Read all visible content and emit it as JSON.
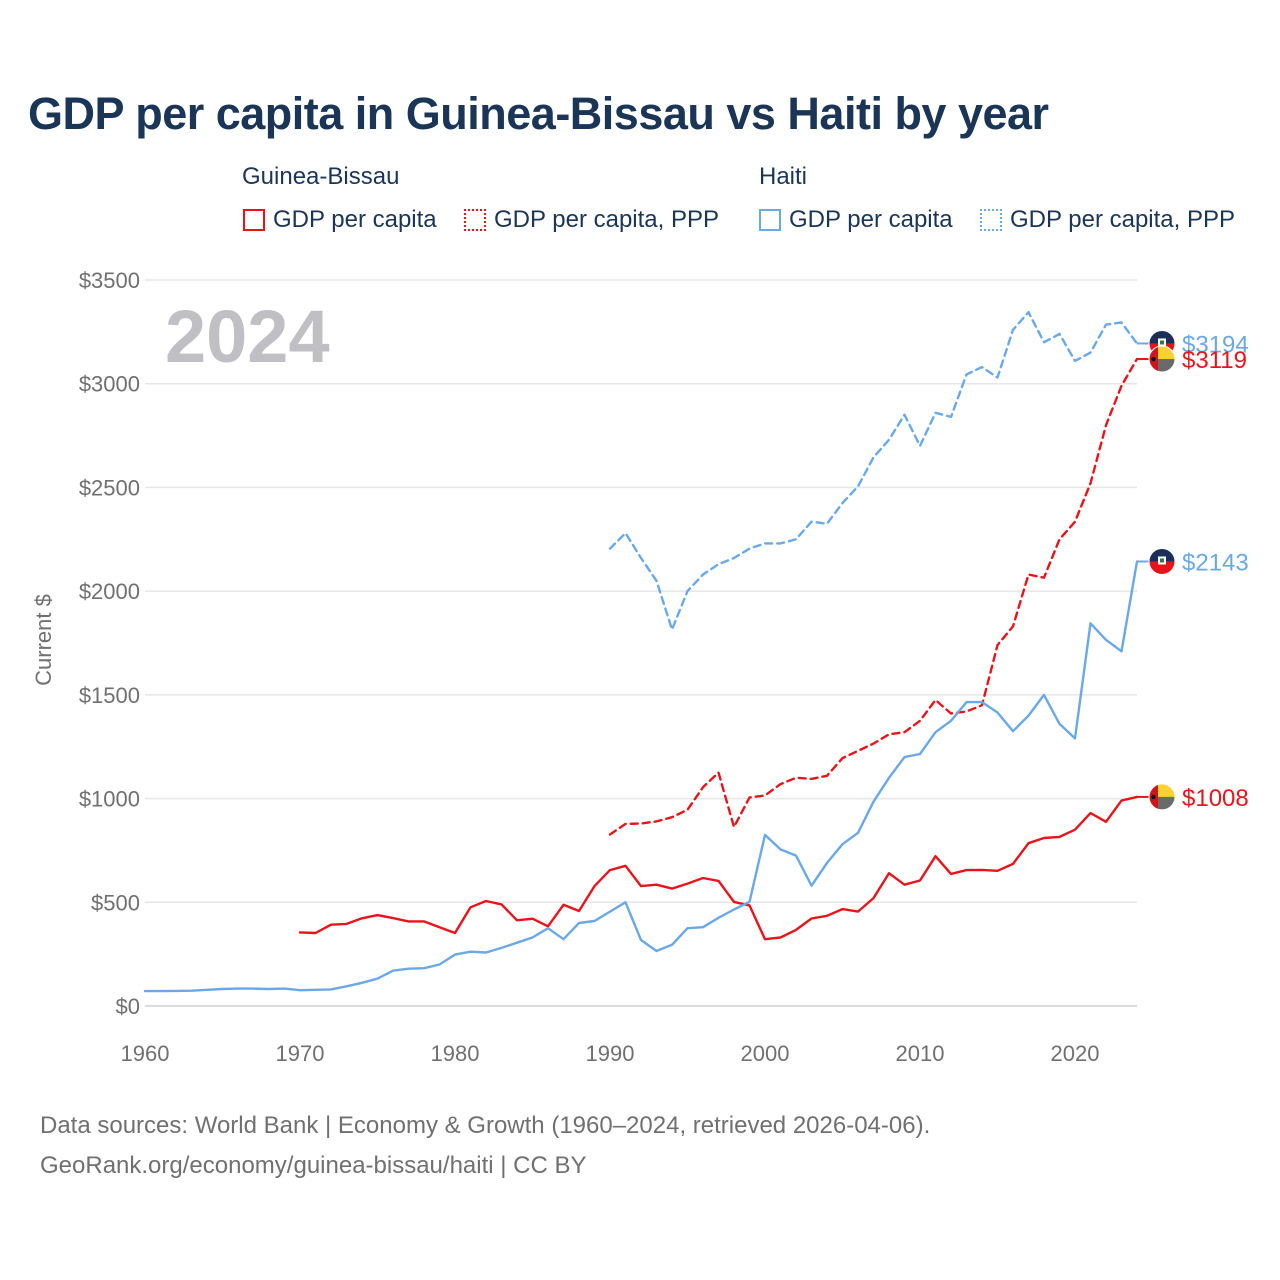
{
  "title": "GDP per capita in Guinea-Bissau vs Haiti by year",
  "legend": {
    "guinea_bissau": {
      "name": "Guinea-Bissau",
      "gdp_label": "GDP per capita",
      "ppp_label": "GDP per capita, PPP"
    },
    "haiti": {
      "name": "Haiti",
      "gdp_label": "GDP per capita",
      "ppp_label": "GDP per capita, PPP"
    }
  },
  "footer": {
    "line1": "Data sources: World Bank | Economy & Growth (1960–2024, retrieved 2026-04-06).",
    "line2": "GeoRank.org/economy/guinea-bissau/haiti | CC BY"
  },
  "colors": {
    "guinea_bissau": "#e8141c",
    "haiti": "#6aa8e6",
    "grid": "#e6e6e6",
    "year_watermark": "#c0c0c4"
  },
  "chart_data": {
    "type": "line",
    "title": "GDP per capita in Guinea-Bissau vs Haiti by year",
    "ylabel": "Current $",
    "xlabel": "",
    "xlim": [
      1960,
      2024
    ],
    "ylim": [
      0,
      3500
    ],
    "yticks": [
      0,
      500,
      1000,
      1500,
      2000,
      2500,
      3000,
      3500
    ],
    "ytick_labels": [
      "$0",
      "$500",
      "$1000",
      "$1500",
      "$2000",
      "$2500",
      "$3000",
      "$3500"
    ],
    "xticks": [
      1960,
      1970,
      1980,
      1990,
      2000,
      2010,
      2020
    ],
    "xtick_labels": [
      "1960",
      "1970",
      "1980",
      "1990",
      "2000",
      "2010",
      "2020"
    ],
    "year_watermark": "2024",
    "series": [
      {
        "id": "gb_gdp",
        "name": "Guinea-Bissau GDP per capita",
        "country": "guinea_bissau",
        "style": "solid",
        "start": 1970,
        "values": [
          355,
          352,
          392,
          396,
          423,
          438,
          424,
          408,
          408,
          380,
          352,
          476,
          506,
          490,
          413,
          421,
          384,
          488,
          458,
          578,
          655,
          676,
          578,
          585,
          566,
          590,
          617,
          603,
          502,
          485,
          322,
          330,
          367,
          422,
          435,
          467,
          455,
          520,
          640,
          585,
          605,
          722,
          637,
          655,
          656,
          652,
          685,
          785,
          810,
          815,
          850,
          930,
          888,
          990,
          1008
        ]
      },
      {
        "id": "gb_ppp",
        "name": "Guinea-Bissau GDP per capita, PPP",
        "country": "guinea_bissau",
        "style": "dashed",
        "start": 1990,
        "values": [
          827,
          878,
          880,
          890,
          910,
          946,
          1055,
          1125,
          863,
          1005,
          1015,
          1070,
          1100,
          1095,
          1110,
          1195,
          1230,
          1265,
          1310,
          1320,
          1375,
          1475,
          1410,
          1420,
          1450,
          1740,
          1830,
          2080,
          2065,
          2250,
          2335,
          2520,
          2800,
          2990,
          3119
        ]
      },
      {
        "id": "ht_gdp",
        "name": "Haiti GDP per capita",
        "country": "haiti",
        "style": "solid",
        "start": 1960,
        "values": [
          72,
          72,
          73,
          74,
          78,
          82,
          84,
          84,
          82,
          84,
          76,
          78,
          80,
          95,
          112,
          132,
          170,
          180,
          182,
          200,
          248,
          262,
          258,
          280,
          305,
          330,
          375,
          322,
          400,
          410,
          455,
          500,
          318,
          265,
          295,
          375,
          380,
          425,
          465,
          502,
          825,
          755,
          725,
          580,
          690,
          780,
          835,
          985,
          1100,
          1200,
          1215,
          1320,
          1375,
          1465,
          1465,
          1415,
          1325,
          1400,
          1500,
          1360,
          1290,
          1845,
          1765,
          1710,
          2143
        ]
      },
      {
        "id": "ht_ppp",
        "name": "Haiti GDP per capita, PPP",
        "country": "haiti",
        "style": "dashed",
        "start": 1990,
        "values": [
          2205,
          2280,
          2160,
          2050,
          1815,
          2000,
          2080,
          2130,
          2160,
          2205,
          2230,
          2230,
          2250,
          2335,
          2325,
          2425,
          2505,
          2645,
          2730,
          2850,
          2700,
          2860,
          2840,
          3045,
          3080,
          3030,
          3260,
          3345,
          3200,
          3240,
          3110,
          3150,
          3285,
          3295,
          3194
        ]
      }
    ],
    "end_labels": [
      {
        "series": "ht_ppp",
        "text": "$3194"
      },
      {
        "series": "gb_ppp",
        "text": "$3119"
      },
      {
        "series": "ht_gdp",
        "text": "$2143"
      },
      {
        "series": "gb_gdp",
        "text": "$1008"
      }
    ]
  }
}
